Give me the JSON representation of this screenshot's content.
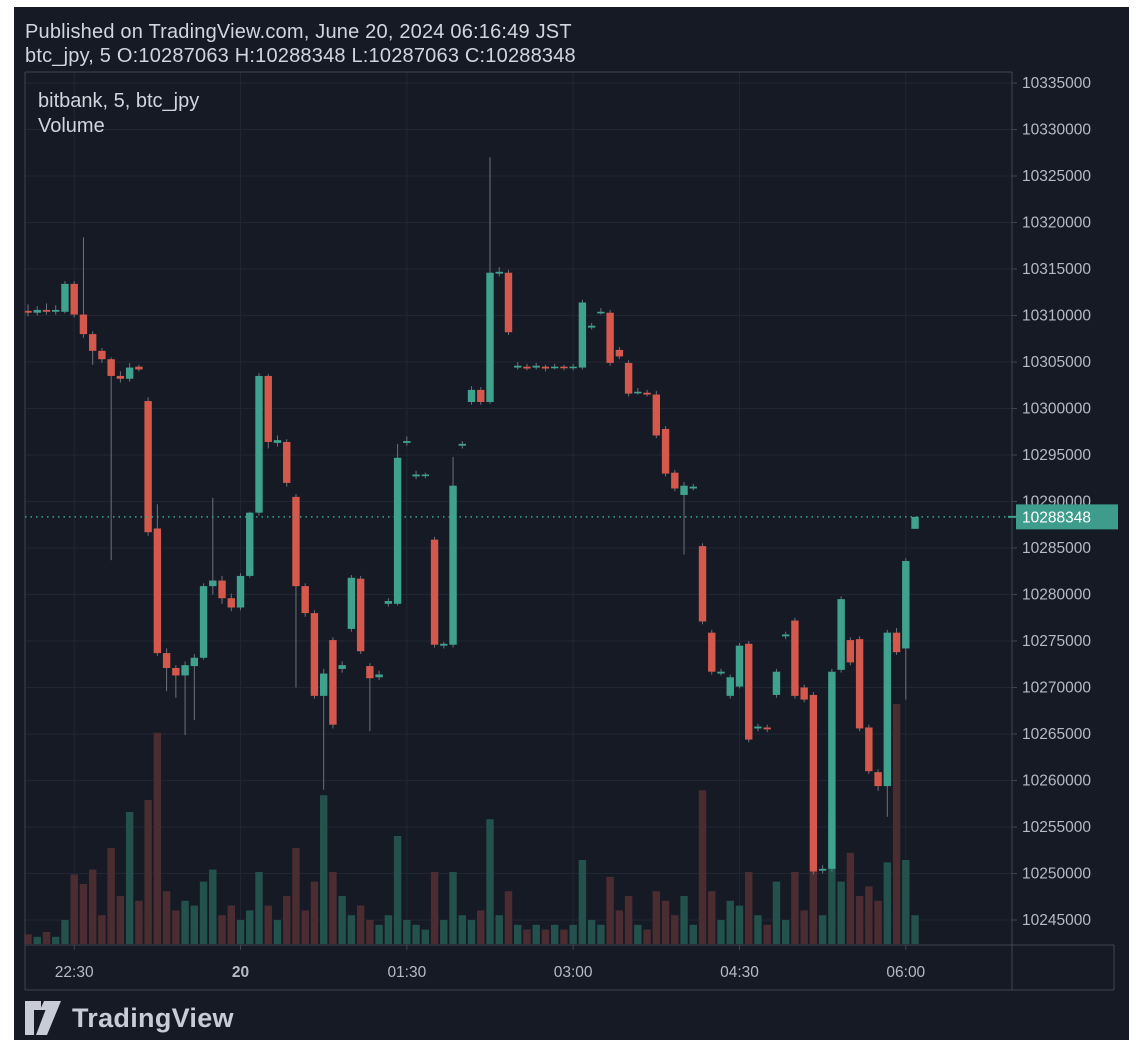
{
  "header": {
    "published_line": "Published on TradingView.com, June 20, 2024 06:16:49 JST",
    "ohlc_line": "btc_jpy, 5 O:10287063 H:10288348 L:10287063 C:10288348"
  },
  "legend": {
    "series_label": "bitbank, 5, btc_jpy",
    "indicator_label": "Volume"
  },
  "watermark": {
    "brand": "TradingView"
  },
  "price_axis": {
    "ticks": [
      "10335000",
      "10330000",
      "10325000",
      "10320000",
      "10315000",
      "10310000",
      "10305000",
      "10300000",
      "10295000",
      "10290000",
      "10285000",
      "10280000",
      "10275000",
      "10270000",
      "10265000",
      "10260000",
      "10255000",
      "10250000",
      "10245000"
    ],
    "last_price_label": "10288348"
  },
  "time_axis": {
    "ticks": [
      {
        "label": "22:30",
        "index": 5,
        "bold": false
      },
      {
        "label": "20",
        "index": 23,
        "bold": true
      },
      {
        "label": "01:30",
        "index": 41,
        "bold": false
      },
      {
        "label": "03:00",
        "index": 59,
        "bold": false
      },
      {
        "label": "04:30",
        "index": 77,
        "bold": false
      },
      {
        "label": "06:00",
        "index": 95,
        "bold": false
      }
    ]
  },
  "colors": {
    "background": "#161a25",
    "frame": "#ffffff",
    "grid": "#20253132",
    "grid_line": "#212633",
    "axis_line": "#3d4453",
    "text_primary": "#d2d5de",
    "text_axis": "#b5bac5",
    "up": "#3fa28e",
    "down": "#d4584c",
    "wick": "#6d717d",
    "vol_up": "#23514b",
    "vol_down": "#4b2d31",
    "dotted_line": "#3aa38d",
    "price_label_bg": "#3d9c8b",
    "price_label_text": "#ffffff",
    "logo": "#c9ccd6"
  },
  "chart_data": {
    "type": "candlestick+volume",
    "exchange": "bitbank",
    "symbol": "btc_jpy",
    "interval_minutes": 5,
    "last_price": 10288348,
    "price_range": [
      10243000,
      10337000
    ],
    "grid": true,
    "legend_position": "top-left",
    "columns": [
      "time",
      "open",
      "high",
      "low",
      "close",
      "volume"
    ],
    "candles": [
      [
        "22:05",
        10310500,
        10311200,
        10309900,
        10310300,
        4
      ],
      [
        "22:10",
        10310300,
        10311000,
        10310000,
        10310600,
        3
      ],
      [
        "22:15",
        10310600,
        10311300,
        10310100,
        10310400,
        5
      ],
      [
        "22:20",
        10310400,
        10311100,
        10310100,
        10310600,
        3
      ],
      [
        "22:25",
        10310400,
        10313700,
        10310200,
        10313400,
        10
      ],
      [
        "22:30",
        10313400,
        10313700,
        10309800,
        10310100,
        29
      ],
      [
        "22:35",
        10310100,
        10318400,
        10307600,
        10308000,
        25
      ],
      [
        "22:40",
        10308000,
        10308300,
        10304700,
        10306200,
        31
      ],
      [
        "22:45",
        10306200,
        10306500,
        10304900,
        10305300,
        12
      ],
      [
        "22:50",
        10305300,
        10305500,
        10283700,
        10303500,
        40
      ],
      [
        "22:55",
        10303500,
        10304000,
        10302800,
        10303200,
        20
      ],
      [
        "23:00",
        10303200,
        10304900,
        10302900,
        10304400,
        55
      ],
      [
        "23:05",
        10304500,
        10304700,
        10304000,
        10304200,
        18
      ],
      [
        "23:10",
        10300800,
        10301200,
        10286300,
        10286700,
        60
      ],
      [
        "23:15",
        10287100,
        10289700,
        10273400,
        10273700,
        88
      ],
      [
        "23:20",
        10273700,
        10274200,
        10269600,
        10272100,
        22
      ],
      [
        "23:25",
        10272100,
        10272400,
        10268900,
        10271300,
        14
      ],
      [
        "23:30",
        10271300,
        10272800,
        10264900,
        10272400,
        18
      ],
      [
        "23:35",
        10272300,
        10273600,
        10266500,
        10273200,
        16
      ],
      [
        "23:40",
        10273200,
        10281200,
        10273000,
        10280900,
        26
      ],
      [
        "23:45",
        10280900,
        10290400,
        10280000,
        10281500,
        31
      ],
      [
        "23:50",
        10281500,
        10282000,
        10279000,
        10279600,
        12
      ],
      [
        "23:55",
        10279600,
        10280100,
        10278200,
        10278600,
        16
      ],
      [
        "00:00",
        10278600,
        10282300,
        10278300,
        10282000,
        10
      ],
      [
        "00:05",
        10282000,
        10288900,
        10281800,
        10288800,
        14
      ],
      [
        "00:10",
        10288800,
        10303800,
        10288500,
        10303500,
        30
      ],
      [
        "00:15",
        10303500,
        10303700,
        10295700,
        10296400,
        16
      ],
      [
        "00:20",
        10296300,
        10297100,
        10295900,
        10296600,
        10
      ],
      [
        "00:25",
        10296400,
        10296700,
        10291600,
        10292000,
        20
      ],
      [
        "00:30",
        10290500,
        10290800,
        10270000,
        10280900,
        40
      ],
      [
        "00:35",
        10280900,
        10281200,
        10277600,
        10278000,
        14
      ],
      [
        "00:40",
        10278000,
        10278300,
        10268800,
        10269100,
        26
      ],
      [
        "00:45",
        10269100,
        10272000,
        10259000,
        10271500,
        62
      ],
      [
        "00:50",
        10275100,
        10275400,
        10265600,
        10266000,
        30
      ],
      [
        "00:55",
        10272000,
        10272800,
        10271600,
        10272400,
        20
      ],
      [
        "01:00",
        10276300,
        10282100,
        10276000,
        10281800,
        12
      ],
      [
        "01:05",
        10281700,
        10282000,
        10273600,
        10273900,
        16
      ],
      [
        "01:10",
        10272300,
        10272600,
        10265300,
        10271000,
        10
      ],
      [
        "01:15",
        10271100,
        10271800,
        10270800,
        10271400,
        8
      ],
      [
        "01:20",
        10279000,
        10279600,
        10278700,
        10279300,
        12
      ],
      [
        "01:25",
        10279000,
        10296200,
        10278800,
        10294700,
        45
      ],
      [
        "01:30",
        10296300,
        10297000,
        10296000,
        10296500,
        10
      ],
      [
        "01:35",
        10292700,
        10293300,
        10292400,
        10292900,
        8
      ],
      [
        "01:40",
        10292800,
        10293100,
        10292500,
        10292900,
        6
      ],
      [
        "01:45",
        10285900,
        10286200,
        10274300,
        10274600,
        30
      ],
      [
        "01:50",
        10274500,
        10274900,
        10274200,
        10274700,
        10
      ],
      [
        "01:55",
        10274600,
        10294800,
        10274300,
        10291700,
        30
      ],
      [
        "02:00",
        10296000,
        10296500,
        10295700,
        10296200,
        12
      ],
      [
        "02:05",
        10300700,
        10302400,
        10300400,
        10302000,
        10
      ],
      [
        "02:10",
        10302000,
        10302300,
        10300400,
        10300700,
        14
      ],
      [
        "02:15",
        10300700,
        10327000,
        10300500,
        10314600,
        52
      ],
      [
        "02:20",
        10314500,
        10315200,
        10314200,
        10314700,
        12
      ],
      [
        "02:25",
        10314600,
        10314900,
        10307900,
        10308200,
        22
      ],
      [
        "02:30",
        10304400,
        10305000,
        10304200,
        10304600,
        8
      ],
      [
        "02:35",
        10304500,
        10304800,
        10304100,
        10304300,
        6
      ],
      [
        "02:40",
        10304400,
        10304900,
        10304200,
        10304600,
        8
      ],
      [
        "02:45",
        10304500,
        10304700,
        10304000,
        10304300,
        6
      ],
      [
        "02:50",
        10304400,
        10304800,
        10304200,
        10304500,
        8
      ],
      [
        "02:55",
        10304500,
        10304700,
        10304100,
        10304400,
        6
      ],
      [
        "03:00",
        10304400,
        10304800,
        10304100,
        10304500,
        8
      ],
      [
        "03:05",
        10304400,
        10311700,
        10304200,
        10311400,
        35
      ],
      [
        "03:10",
        10308700,
        10309200,
        10308500,
        10308900,
        10
      ],
      [
        "03:15",
        10310300,
        10310800,
        10310100,
        10310400,
        8
      ],
      [
        "03:20",
        10310300,
        10310600,
        10304600,
        10304900,
        28
      ],
      [
        "03:25",
        10306300,
        10306600,
        10305300,
        10305600,
        14
      ],
      [
        "03:30",
        10304900,
        10305200,
        10301300,
        10301600,
        20
      ],
      [
        "03:35",
        10301700,
        10302200,
        10301500,
        10301800,
        8
      ],
      [
        "03:40",
        10301700,
        10302000,
        10301300,
        10301500,
        6
      ],
      [
        "03:45",
        10301500,
        10301900,
        10296800,
        10297100,
        22
      ],
      [
        "03:50",
        10297800,
        10298100,
        10292700,
        10293000,
        18
      ],
      [
        "03:55",
        10293100,
        10293400,
        10291100,
        10291400,
        12
      ],
      [
        "04:00",
        10290700,
        10292100,
        10284300,
        10291700,
        20
      ],
      [
        "04:05",
        10291400,
        10291900,
        10291200,
        10291600,
        8
      ],
      [
        "04:10",
        10285200,
        10285500,
        10276800,
        10277100,
        64
      ],
      [
        "04:15",
        10275900,
        10276200,
        10271400,
        10271700,
        22
      ],
      [
        "04:20",
        10271500,
        10272000,
        10271300,
        10271700,
        10
      ],
      [
        "04:25",
        10269100,
        10271400,
        10268800,
        10271100,
        18
      ],
      [
        "04:30",
        10270100,
        10274800,
        10269900,
        10274500,
        16
      ],
      [
        "04:35",
        10274700,
        10275000,
        10264100,
        10264400,
        30
      ],
      [
        "04:40",
        10265600,
        10266100,
        10265300,
        10265800,
        12
      ],
      [
        "04:45",
        10265700,
        10266000,
        10265200,
        10265500,
        8
      ],
      [
        "04:50",
        10269200,
        10272000,
        10268900,
        10271700,
        26
      ],
      [
        "04:55",
        10275500,
        10276000,
        10275200,
        10275700,
        10
      ],
      [
        "05:00",
        10277200,
        10277500,
        10268800,
        10269100,
        30
      ],
      [
        "05:05",
        10270000,
        10270300,
        10268400,
        10268700,
        14
      ],
      [
        "05:10",
        10269200,
        10269500,
        10249900,
        10250200,
        30
      ],
      [
        "05:15",
        10250300,
        10250900,
        10250000,
        10250500,
        12
      ],
      [
        "05:20",
        10250500,
        10272000,
        10250200,
        10271700,
        55
      ],
      [
        "05:25",
        10271900,
        10279800,
        10271600,
        10279500,
        26
      ],
      [
        "05:30",
        10275100,
        10275400,
        10272400,
        10272700,
        38
      ],
      [
        "05:35",
        10275200,
        10275500,
        10265300,
        10265600,
        20
      ],
      [
        "05:40",
        10265700,
        10266000,
        10260700,
        10261000,
        24
      ],
      [
        "05:45",
        10260900,
        10261200,
        10258900,
        10259400,
        18
      ],
      [
        "05:50",
        10259400,
        10276200,
        10256100,
        10275900,
        34
      ],
      [
        "05:55",
        10275900,
        10276400,
        10273500,
        10273800,
        100
      ],
      [
        "06:00",
        10274200,
        10283900,
        10268700,
        10283600,
        35
      ],
      [
        "06:05",
        10287063,
        10288348,
        10287063,
        10288348,
        12
      ]
    ]
  }
}
